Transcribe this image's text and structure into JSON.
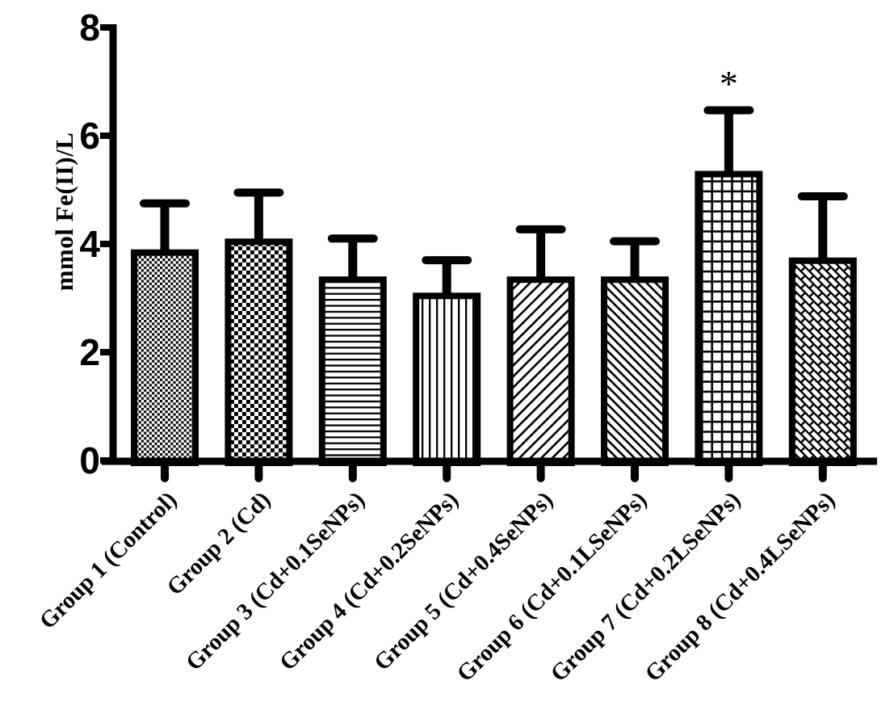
{
  "chart_data": {
    "type": "bar",
    "ylabel": "mmol Fe(II)/L",
    "xlabel": "",
    "ylim": [
      0,
      8
    ],
    "yticks": [
      0,
      2,
      4,
      6,
      8
    ],
    "grid": false,
    "legend": null,
    "categories": [
      "Group 1 (Control)",
      "Group 2 (Cd)",
      "Group 3 (Cd+0.1SeNPs)",
      "Group 4 (Cd+0.2SeNPs)",
      "Group 5 (Cd+0.4SeNPs)",
      "Group 6 (Cd+0.1LSeNPs)",
      "Group 7 (Cd+0.2LSeNPs)",
      "Group 8 (Cd+0.4LSeNPs)"
    ],
    "values": [
      3.9,
      4.1,
      3.4,
      3.1,
      3.4,
      3.4,
      5.35,
      3.75
    ],
    "error_up": [
      0.85,
      0.85,
      0.7,
      0.6,
      0.87,
      0.65,
      1.12,
      1.13
    ],
    "bar_patterns": [
      "fine-checkerboard",
      "checkerboard",
      "horizontal-lines",
      "vertical-lines",
      "diagonal-up-lines",
      "diagonal-down-lines",
      "square-grid",
      "diagonal-bricks"
    ],
    "annotations": [
      {
        "text": "*",
        "group_index": 6
      }
    ],
    "colors": {
      "foreground": "#000000",
      "background": "#ffffff"
    }
  }
}
